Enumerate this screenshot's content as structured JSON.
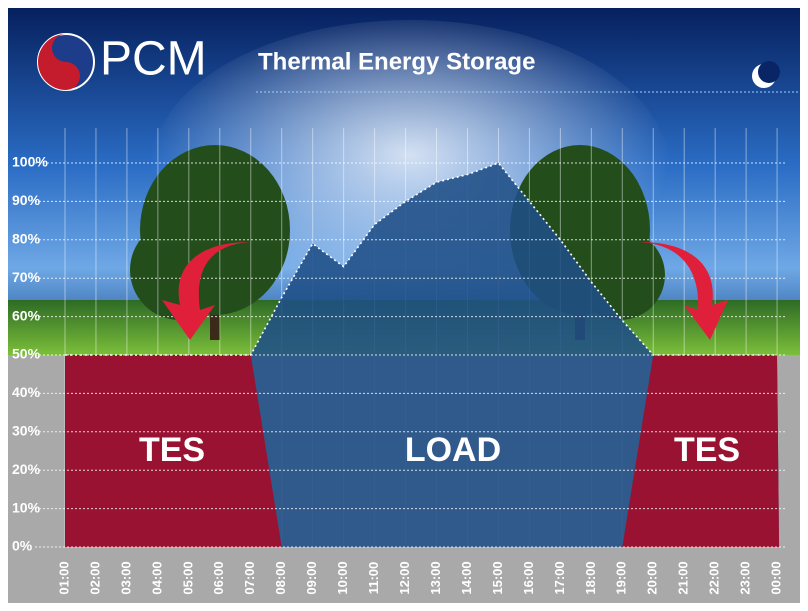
{
  "logo": "PCM",
  "chart_data": {
    "type": "area",
    "title": "Thermal Energy Storage",
    "categories": [
      "01:00",
      "02:00",
      "03:00",
      "04:00",
      "05:00",
      "06:00",
      "07:00",
      "08:00",
      "09:00",
      "10:00",
      "11:00",
      "12:00",
      "13:00",
      "14:00",
      "15:00",
      "16:00",
      "17:00",
      "18:00",
      "19:00",
      "20:00",
      "21:00",
      "22:00",
      "23:00",
      "00:00"
    ],
    "series": [
      {
        "name": "LOAD",
        "color": "#1f4f86",
        "values": [
          50,
          50,
          50,
          50,
          50,
          50,
          50,
          65,
          79,
          73,
          84,
          90,
          95,
          97,
          100,
          90,
          80,
          69,
          59,
          50,
          50,
          50,
          50,
          50
        ]
      },
      {
        "name": "TES",
        "color": "#9a1232",
        "values": [
          50,
          50,
          50,
          50,
          50,
          50,
          50,
          0,
          0,
          0,
          0,
          0,
          0,
          0,
          0,
          0,
          0,
          0,
          0,
          50,
          50,
          50,
          50,
          50
        ]
      }
    ],
    "ylim": [
      0,
      100
    ],
    "yticks": [
      {
        "value": 0,
        "label": "0%"
      },
      {
        "value": 10,
        "label": "10%"
      },
      {
        "value": 20,
        "label": "20%"
      },
      {
        "value": 30,
        "label": "30%"
      },
      {
        "value": 40,
        "label": "40%"
      },
      {
        "value": 50,
        "label": "50%"
      },
      {
        "value": 60,
        "label": "60%"
      },
      {
        "value": 70,
        "label": "70%"
      },
      {
        "value": 80,
        "label": "80%"
      },
      {
        "value": 90,
        "label": "90%"
      },
      {
        "value": 100,
        "label": "100%"
      }
    ],
    "grid": true
  }
}
